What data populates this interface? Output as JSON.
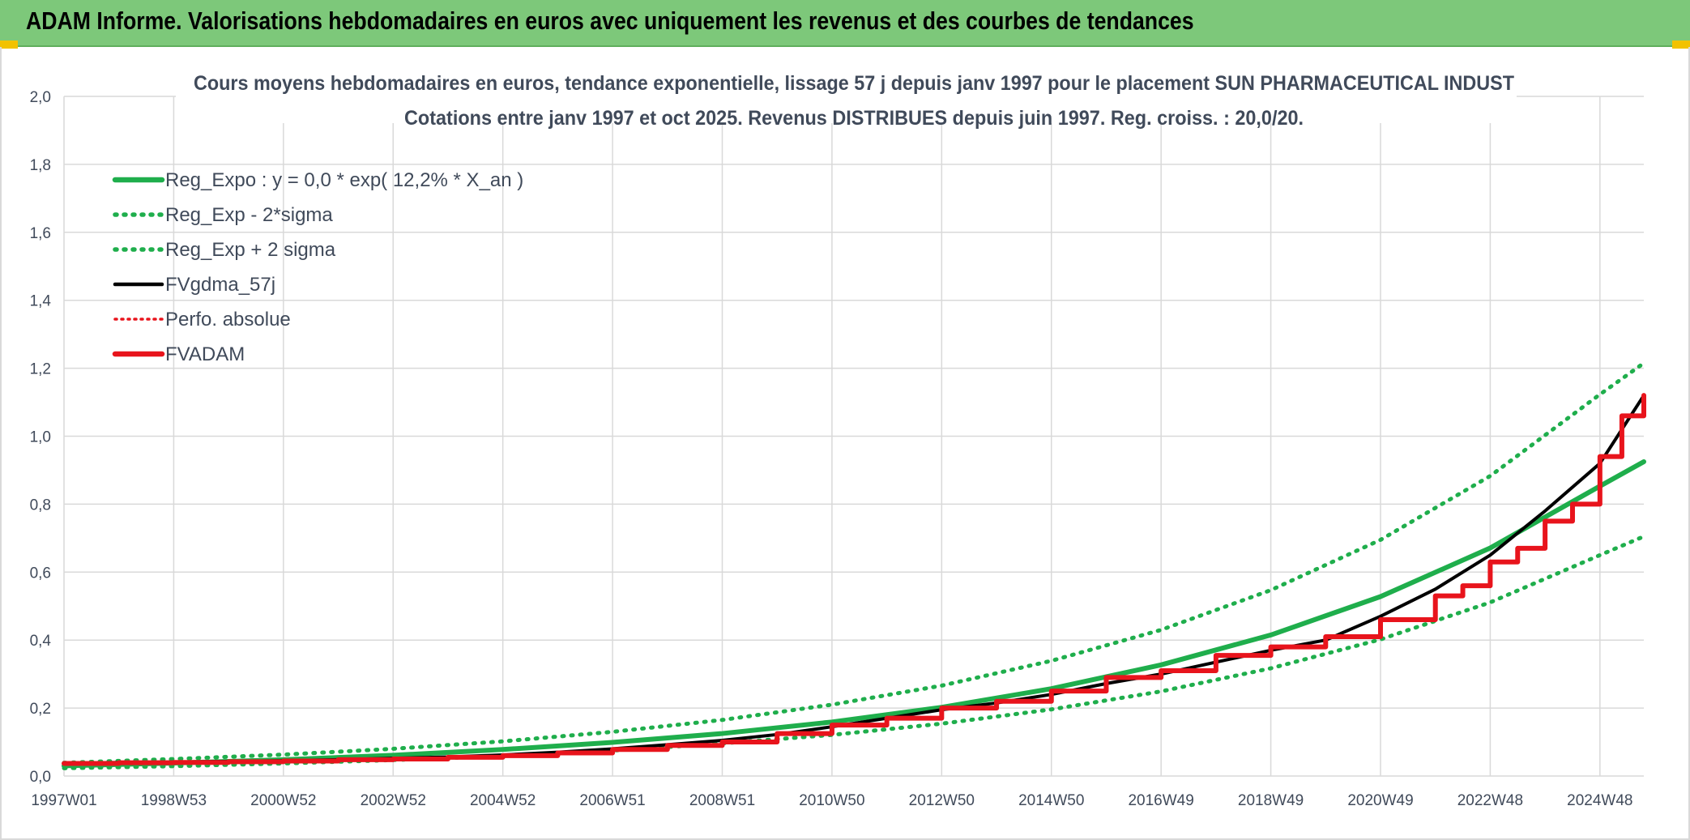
{
  "banner": {
    "title": "ADAM Informe. Valorisations hebdomadaires en euros avec uniquement les revenus et des courbes de tendances"
  },
  "colors": {
    "banner_bg": "#7dc87a",
    "reg_green": "#1fae4c",
    "fvadam_red": "#e8141c",
    "fvgdma_black": "#000000",
    "grid": "#d9d9d9",
    "text": "#404a5a"
  },
  "chart_data": {
    "type": "line",
    "title_line1": "Cours moyens hebdomadaires en euros, tendance exponentielle, lissage 57 j depuis janv 1997 pour le placement SUN PHARMACEUTICAL INDUST",
    "title_line2": "Cotations entre janv 1997 et oct 2025. Revenus DISTRIBUES depuis juin 1997. Reg. croiss. : 20,0/20.",
    "xlabel": "",
    "ylabel": "",
    "x_range": [
      1997.0,
      2025.8
    ],
    "ylim": [
      0,
      2.0
    ],
    "y_ticks": [
      "0,0",
      "0,2",
      "0,4",
      "0,6",
      "0,8",
      "1,0",
      "1,2",
      "1,4",
      "1,6",
      "1,8",
      "2,0"
    ],
    "x_ticks": [
      {
        "label": "1997W01",
        "x": 1997.0
      },
      {
        "label": "1998W53",
        "x": 1999.0
      },
      {
        "label": "2000W52",
        "x": 2001.0
      },
      {
        "label": "2002W52",
        "x": 2003.0
      },
      {
        "label": "2004W52",
        "x": 2005.0
      },
      {
        "label": "2006W51",
        "x": 2007.0
      },
      {
        "label": "2008W51",
        "x": 2009.0
      },
      {
        "label": "2010W50",
        "x": 2011.0
      },
      {
        "label": "2012W50",
        "x": 2013.0
      },
      {
        "label": "2014W50",
        "x": 2015.0
      },
      {
        "label": "2016W49",
        "x": 2017.0
      },
      {
        "label": "2018W49",
        "x": 2019.0
      },
      {
        "label": "2020W49",
        "x": 2021.0
      },
      {
        "label": "2022W48",
        "x": 2023.0
      },
      {
        "label": "2024W48",
        "x": 2025.0
      }
    ],
    "grid": true,
    "legend_position": "top-left",
    "series": [
      {
        "name": "Reg_Expo : y = 0,0 * exp( 12,2% *  X_an )",
        "style": "solid-thick-green",
        "x": [
          1997.0,
          1999.0,
          2001.0,
          2003.0,
          2005.0,
          2007.0,
          2009.0,
          2011.0,
          2013.0,
          2015.0,
          2017.0,
          2019.0,
          2021.0,
          2023.0,
          2025.0,
          2025.8
        ],
        "values": [
          0.03,
          0.038,
          0.048,
          0.061,
          0.078,
          0.099,
          0.125,
          0.159,
          0.202,
          0.257,
          0.327,
          0.415,
          0.528,
          0.671,
          0.853,
          0.925
        ]
      },
      {
        "name": "Reg_Exp - 2*sigma",
        "style": "dotted-green",
        "x": [
          1997.0,
          1999.0,
          2001.0,
          2003.0,
          2005.0,
          2007.0,
          2009.0,
          2011.0,
          2013.0,
          2015.0,
          2017.0,
          2019.0,
          2021.0,
          2023.0,
          2025.0,
          2025.8
        ],
        "values": [
          0.023,
          0.029,
          0.037,
          0.047,
          0.059,
          0.075,
          0.096,
          0.121,
          0.154,
          0.196,
          0.249,
          0.317,
          0.402,
          0.511,
          0.65,
          0.705
        ]
      },
      {
        "name": "Reg_Exp + 2 sigma",
        "style": "dotted-green",
        "x": [
          1997.0,
          1999.0,
          2001.0,
          2003.0,
          2005.0,
          2007.0,
          2009.0,
          2011.0,
          2013.0,
          2015.0,
          2017.0,
          2019.0,
          2021.0,
          2023.0,
          2025.0,
          2025.8
        ],
        "values": [
          0.039,
          0.05,
          0.063,
          0.08,
          0.102,
          0.13,
          0.165,
          0.21,
          0.266,
          0.339,
          0.43,
          0.547,
          0.695,
          0.883,
          1.123,
          1.215
        ]
      },
      {
        "name": "FVgdma_57j",
        "style": "solid-black",
        "x": [
          1997.0,
          1998.0,
          1999.0,
          2000.0,
          2001.0,
          2002.0,
          2003.0,
          2004.0,
          2005.0,
          2006.0,
          2007.0,
          2008.0,
          2009.0,
          2010.0,
          2011.0,
          2012.0,
          2013.0,
          2014.0,
          2015.0,
          2016.0,
          2017.0,
          2018.0,
          2019.0,
          2020.0,
          2021.0,
          2022.0,
          2023.0,
          2024.0,
          2025.0,
          2025.8
        ],
        "values": [
          0.038,
          0.04,
          0.041,
          0.043,
          0.045,
          0.048,
          0.052,
          0.056,
          0.062,
          0.07,
          0.08,
          0.092,
          0.105,
          0.122,
          0.145,
          0.17,
          0.195,
          0.215,
          0.24,
          0.272,
          0.3,
          0.335,
          0.37,
          0.4,
          0.47,
          0.55,
          0.65,
          0.78,
          0.92,
          1.12
        ]
      },
      {
        "name": "Perfo. absolue",
        "style": "dotted-red",
        "x": [],
        "values": []
      },
      {
        "name": "FVADAM",
        "style": "step-thick-red",
        "x": [
          1997.0,
          1998.0,
          1999.0,
          2000.0,
          2001.0,
          2002.0,
          2003.0,
          2004.0,
          2005.0,
          2006.0,
          2007.0,
          2008.0,
          2009.0,
          2010.0,
          2011.0,
          2012.0,
          2013.0,
          2014.0,
          2015.0,
          2016.0,
          2017.0,
          2018.0,
          2019.0,
          2020.0,
          2021.0,
          2022.0,
          2022.5,
          2023.0,
          2023.5,
          2024.0,
          2024.5,
          2025.0,
          2025.4,
          2025.8
        ],
        "values": [
          0.037,
          0.039,
          0.04,
          0.042,
          0.044,
          0.048,
          0.05,
          0.055,
          0.06,
          0.068,
          0.078,
          0.09,
          0.1,
          0.125,
          0.15,
          0.17,
          0.2,
          0.22,
          0.25,
          0.29,
          0.31,
          0.355,
          0.38,
          0.41,
          0.46,
          0.53,
          0.56,
          0.63,
          0.67,
          0.75,
          0.8,
          0.94,
          1.06,
          1.12
        ]
      }
    ]
  }
}
